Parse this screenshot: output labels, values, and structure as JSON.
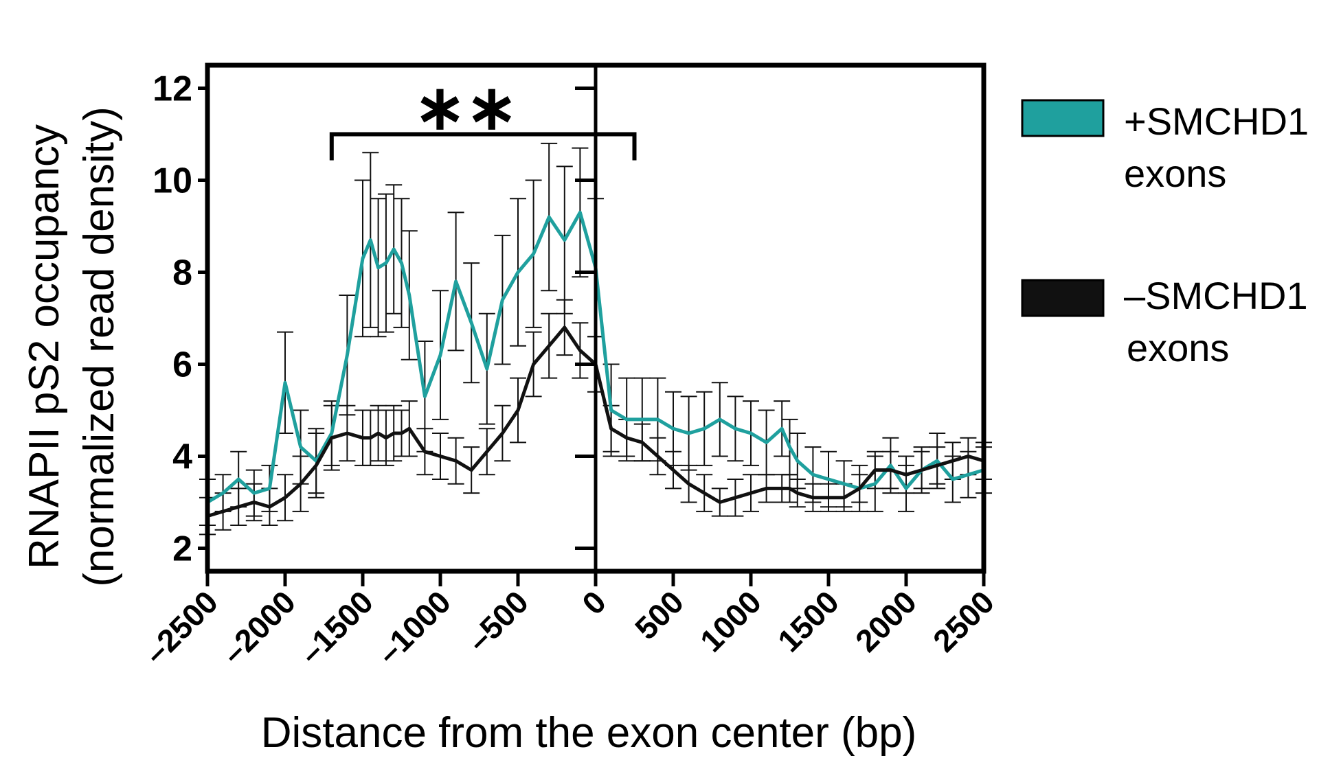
{
  "chart_data": {
    "type": "line",
    "title": "",
    "xlabel": "Distance from the exon center (bp)",
    "ylabel_line1": "RNAPII pS2 occupancy",
    "ylabel_line2": "(normalized read density)",
    "xlim": [
      -2500,
      2500
    ],
    "ylim": [
      1.5,
      12.5
    ],
    "x_ticks": [
      -2500,
      -2000,
      -1500,
      -1000,
      -500,
      0,
      500,
      1000,
      1500,
      2000,
      2500
    ],
    "x_tick_labels": [
      "–2500",
      "–2000",
      "–1500",
      "–1000",
      "–500",
      "0",
      "500",
      "1000",
      "1500",
      "2000",
      "2500"
    ],
    "y_ticks": [
      2,
      4,
      6,
      8,
      10,
      12
    ],
    "y_tick_labels": [
      "2",
      "4",
      "6",
      "8",
      "10",
      "12"
    ],
    "grid": false,
    "legend_position": "right",
    "x": [
      -2500,
      -2400,
      -2300,
      -2200,
      -2100,
      -2000,
      -1900,
      -1800,
      -1700,
      -1600,
      -1500,
      -1450,
      -1400,
      -1350,
      -1300,
      -1250,
      -1200,
      -1100,
      -1000,
      -900,
      -800,
      -700,
      -600,
      -500,
      -400,
      -300,
      -200,
      -100,
      0,
      100,
      200,
      300,
      400,
      500,
      600,
      700,
      800,
      900,
      1000,
      1100,
      1200,
      1250,
      1300,
      1400,
      1500,
      1600,
      1700,
      1800,
      1900,
      2000,
      2100,
      2200,
      2300,
      2400,
      2500
    ],
    "series": [
      {
        "name_line1": "+SMCHD1",
        "name_line2": "exons",
        "color": "#1fa09e",
        "values": [
          3.0,
          3.2,
          3.5,
          3.2,
          3.3,
          5.6,
          4.2,
          3.9,
          4.5,
          6.2,
          8.3,
          8.7,
          8.1,
          8.2,
          8.5,
          8.2,
          7.5,
          5.3,
          6.2,
          7.8,
          6.9,
          5.9,
          7.4,
          8.0,
          8.4,
          9.2,
          8.7,
          9.3,
          8.1,
          5.0,
          4.8,
          4.8,
          4.8,
          4.6,
          4.5,
          4.6,
          4.8,
          4.6,
          4.5,
          4.3,
          4.6,
          4.2,
          3.9,
          3.6,
          3.5,
          3.4,
          3.3,
          3.4,
          3.8,
          3.3,
          3.7,
          3.9,
          3.5,
          3.6,
          3.7
        ],
        "errors": [
          0.5,
          0.4,
          0.6,
          0.5,
          0.5,
          1.1,
          0.8,
          0.7,
          0.7,
          1.3,
          1.7,
          1.9,
          1.5,
          1.5,
          1.4,
          1.4,
          1.4,
          1.2,
          1.4,
          1.5,
          1.3,
          1.2,
          1.4,
          1.6,
          1.6,
          1.6,
          1.6,
          1.4,
          1.5,
          1.0,
          0.9,
          0.9,
          0.9,
          0.8,
          0.8,
          0.8,
          0.8,
          0.7,
          0.7,
          0.7,
          0.6,
          0.6,
          0.6,
          0.6,
          0.6,
          0.5,
          0.5,
          0.6,
          0.6,
          0.5,
          0.5,
          0.6,
          0.5,
          0.5,
          0.5
        ]
      },
      {
        "name_line1": "–SMCHD1",
        "name_line2": "exons",
        "color": "#111111",
        "values": [
          2.7,
          2.8,
          2.9,
          3.0,
          2.9,
          3.1,
          3.4,
          3.8,
          4.4,
          4.5,
          4.4,
          4.4,
          4.5,
          4.4,
          4.5,
          4.5,
          4.6,
          4.1,
          4.0,
          3.9,
          3.7,
          4.1,
          4.5,
          5.0,
          6.0,
          6.4,
          6.8,
          6.3,
          6.0,
          4.6,
          4.4,
          4.3,
          4.0,
          3.7,
          3.4,
          3.2,
          3.0,
          3.1,
          3.2,
          3.3,
          3.3,
          3.3,
          3.2,
          3.1,
          3.1,
          3.1,
          3.3,
          3.7,
          3.7,
          3.6,
          3.7,
          3.8,
          3.9,
          4.0,
          3.9
        ],
        "errors": [
          0.4,
          0.4,
          0.4,
          0.4,
          0.4,
          0.5,
          0.6,
          0.7,
          0.7,
          0.6,
          0.6,
          0.6,
          0.6,
          0.6,
          0.6,
          0.5,
          0.6,
          0.5,
          0.5,
          0.5,
          0.5,
          0.5,
          0.6,
          0.7,
          0.7,
          0.7,
          0.6,
          0.6,
          0.6,
          0.5,
          0.4,
          0.4,
          0.4,
          0.4,
          0.4,
          0.4,
          0.3,
          0.4,
          0.4,
          0.3,
          0.3,
          0.3,
          0.3,
          0.3,
          0.3,
          0.3,
          0.3,
          0.4,
          0.4,
          0.4,
          0.4,
          0.4,
          0.4,
          0.4,
          0.4
        ]
      }
    ],
    "annotation": {
      "text": "∗∗",
      "x_from": -1700,
      "x_to": 250,
      "y": 11.0
    },
    "vertical_line_x": 0
  }
}
